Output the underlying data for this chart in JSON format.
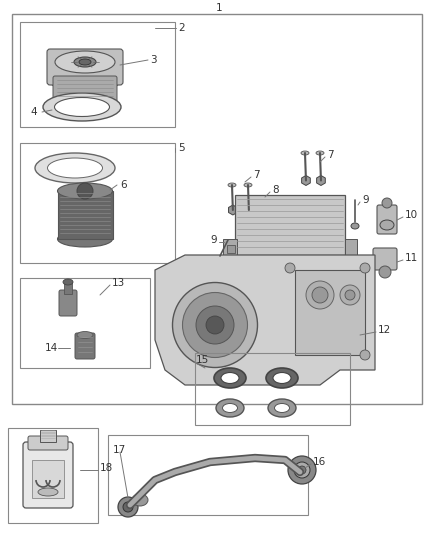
{
  "bg_color": "#ffffff",
  "border_color": "#888888",
  "label_color": "#333333",
  "font_size": 7.5
}
